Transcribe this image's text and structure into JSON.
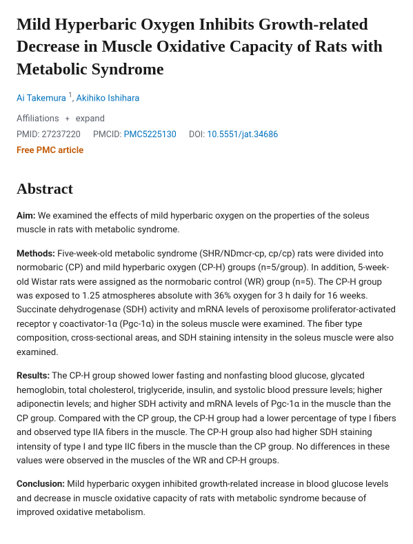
{
  "title": "Mild Hyperbaric Oxygen Inhibits Growth-related Decrease in Muscle Oxidative Capacity of Rats with Metabolic Syndrome",
  "authors": {
    "a1": "Ai Takemura",
    "a1_affil": "1",
    "sep": ", ",
    "a2": "Akihiko Ishihara"
  },
  "affil": {
    "label": "Affiliations",
    "expand": "expand"
  },
  "ids": {
    "pmid_label": "PMID:",
    "pmid": "27237220",
    "pmcid_label": "PMCID:",
    "pmcid": "PMC5225130",
    "doi_label": "DOI:",
    "doi": "10.5551/jat.34686"
  },
  "free_pmc": "Free PMC article",
  "abstract_heading": "Abstract",
  "sections": {
    "aim": {
      "label": "Aim:",
      "text": " We examined the effects of mild hyperbaric oxygen on the properties of the soleus muscle in rats with metabolic syndrome."
    },
    "methods": {
      "label": "Methods:",
      "text": " Five-week-old metabolic syndrome (SHR/NDmcr-cp, cp/cp) rats were divided into normobaric (CP) and mild hyperbaric oxygen (CP-H) groups (n=5/group). In addition, 5-week-old Wistar rats were assigned as the normobaric control (WR) group (n=5). The CP-H group was exposed to 1.25 atmospheres absolute with 36% oxygen for 3 h daily for 16 weeks. Succinate dehydrogenase (SDH) activity and mRNA levels of peroxisome proliferator-activated receptor γ coactivator-1α (Pgc-1α) in the soleus muscle were examined. The fiber type composition, cross-sectional areas, and SDH staining intensity in the soleus muscle were also examined."
    },
    "results": {
      "label": "Results:",
      "text": " The CP-H group showed lower fasting and nonfasting blood glucose, glycated hemoglobin, total cholesterol, triglyceride, insulin, and systolic blood pressure levels; higher adiponectin levels; and higher SDH activity and mRNA levels of Pgc-1α in the muscle than the CP group. Compared with the CP group, the CP-H group had a lower percentage of type I fibers and observed type IIA fibers in the muscle. The CP-H group also had higher SDH staining intensity of type I and type IIC fibers in the muscle than the CP group. No differences in these values were observed in the muscles of the WR and CP-H groups."
    },
    "conclusion": {
      "label": "Conclusion:",
      "text": " Mild hyperbaric oxygen inhibited growth-related increase in blood glucose levels and decrease in muscle oxidative capacity of rats with metabolic syndrome because of improved oxidative metabolism."
    }
  }
}
